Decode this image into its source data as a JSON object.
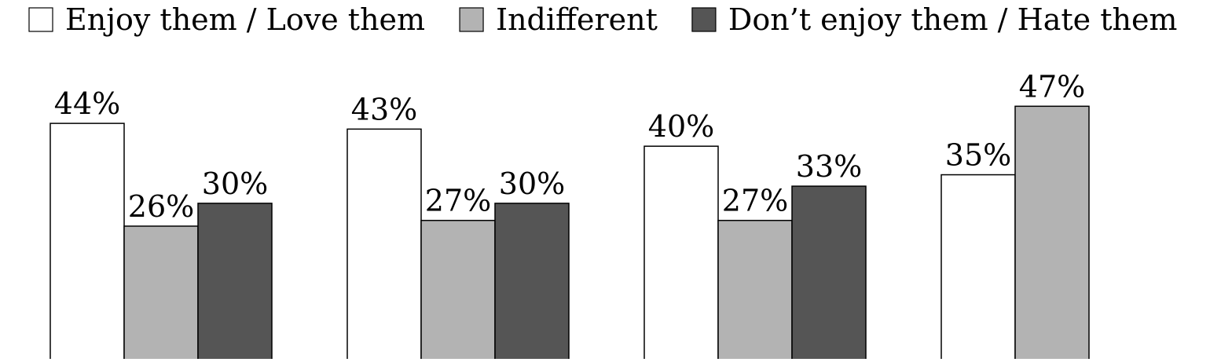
{
  "chart_data": {
    "type": "bar",
    "title": "",
    "xlabel": "",
    "ylabel": "",
    "ylim": [
      0,
      50
    ],
    "grid": false,
    "legend_position": "top",
    "categories": [
      "",
      "",
      "",
      ""
    ],
    "series": [
      {
        "name": "Enjoy them / Love them",
        "color": "#ffffff",
        "values": [
          44,
          43,
          40,
          35
        ]
      },
      {
        "name": "Indifferent",
        "color": "#b3b3b3",
        "values": [
          26,
          27,
          27,
          47
        ]
      },
      {
        "name": "Don’t enjoy them / Hate them",
        "color": "#555555",
        "values": [
          30,
          30,
          33,
          null
        ]
      }
    ],
    "value_suffix": "%"
  }
}
